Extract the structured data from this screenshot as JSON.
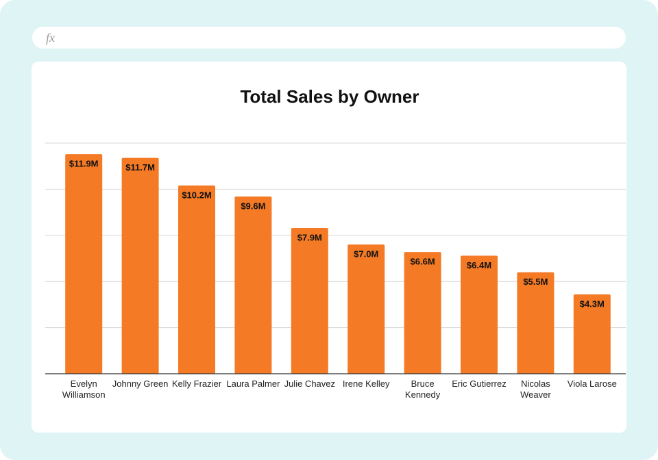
{
  "formula_bar": {
    "icon": "fx"
  },
  "chart_data": {
    "type": "bar",
    "title": "Total Sales by Owner",
    "categories": [
      "Evelyn Williamson",
      "Johnny Green",
      "Kelly Frazier",
      "Laura Palmer",
      "Julie Chavez",
      "Irene Kelley",
      "Bruce Kennedy",
      "Eric Gutierrez",
      "Nicolas Weaver",
      "Viola Larose"
    ],
    "values": [
      11.9,
      11.7,
      10.2,
      9.6,
      7.9,
      7.0,
      6.6,
      6.4,
      5.5,
      4.3
    ],
    "value_labels": [
      "$11.9M",
      "$11.7M",
      "$10.2M",
      "$9.6M",
      "$7.9M",
      "$7.0M",
      "$6.6M",
      "$6.4M",
      "$5.5M",
      "$4.3M"
    ],
    "color": "#f47a25",
    "ylim": [
      0,
      12.5
    ],
    "yticks": [
      0,
      2.5,
      5,
      7.5,
      10,
      12.5
    ],
    "grid": true
  }
}
